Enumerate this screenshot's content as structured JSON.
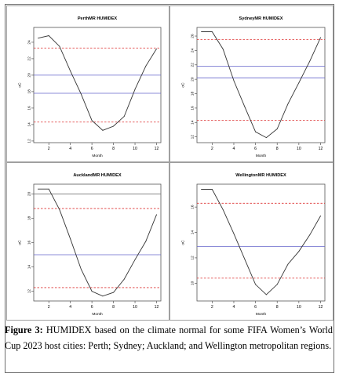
{
  "caption": {
    "label": "Figure 3:",
    "text": " HUMIDEX based on the climate normal for some FIFA Women’s World Cup 2023 host cities: Perth; Sydney; Auckland; and Wellington metropolitan regions."
  },
  "colors": {
    "curve": "#333333",
    "threshold_red": "#dd3333",
    "threshold_blue": "#6666cc",
    "threshold_gray": "#777777"
  },
  "chart_data": [
    {
      "type": "line",
      "title": "PerthMR HUMIDEX",
      "xlabel": "Month",
      "ylabel": "oC",
      "xlim": [
        0.6,
        12.4
      ],
      "ylim": [
        11.8,
        25.8
      ],
      "x_ticks": [
        2,
        4,
        6,
        8,
        10,
        12
      ],
      "y_ticks": [
        12,
        14,
        16,
        18,
        20,
        22,
        24
      ],
      "x": [
        1,
        2,
        3,
        4,
        5,
        6,
        7,
        8,
        9,
        10,
        11,
        12
      ],
      "y": [
        24.5,
        24.8,
        23.5,
        20.5,
        17.7,
        14.5,
        13.3,
        13.8,
        15.0,
        18.3,
        21.1,
        23.2
      ],
      "hlines": [
        {
          "y": 23.3,
          "color": "red",
          "style": "dashed"
        },
        {
          "y": 20.0,
          "color": "blue",
          "style": "solid"
        },
        {
          "y": 17.8,
          "color": "blue",
          "style": "solid"
        },
        {
          "y": 14.3,
          "color": "red",
          "style": "dashed"
        }
      ]
    },
    {
      "type": "line",
      "title": "SydneyMR HUMIDEX",
      "xlabel": "Month",
      "ylabel": "oC",
      "xlim": [
        0.6,
        12.4
      ],
      "ylim": [
        11.2,
        27.2
      ],
      "x_ticks": [
        2,
        4,
        6,
        8,
        10,
        12
      ],
      "y_ticks": [
        12,
        14,
        16,
        18,
        20,
        22,
        24,
        26
      ],
      "x": [
        1,
        2,
        3,
        4,
        5,
        6,
        7,
        8,
        9,
        10,
        11,
        12
      ],
      "y": [
        26.6,
        26.6,
        24.2,
        19.8,
        16.2,
        12.7,
        11.9,
        13.1,
        16.6,
        19.5,
        22.5,
        25.8
      ],
      "hlines": [
        {
          "y": 25.5,
          "color": "red",
          "style": "dashed"
        },
        {
          "y": 21.8,
          "color": "blue",
          "style": "solid"
        },
        {
          "y": 20.2,
          "color": "blue",
          "style": "solid"
        },
        {
          "y": 14.3,
          "color": "red",
          "style": "dashed"
        }
      ]
    },
    {
      "type": "line",
      "title": "AucklandMR HUMIDEX",
      "xlabel": "Month",
      "ylabel": "oC",
      "xlim": [
        0.6,
        12.4
      ],
      "ylim": [
        11.2,
        20.8
      ],
      "x_ticks": [
        2,
        4,
        6,
        8,
        10,
        12
      ],
      "y_ticks": [
        12,
        14,
        16,
        18,
        20
      ],
      "x": [
        1,
        2,
        3,
        4,
        5,
        6,
        7,
        8,
        9,
        10,
        11,
        12
      ],
      "y": [
        20.4,
        20.4,
        18.7,
        16.3,
        13.8,
        12.0,
        11.6,
        11.9,
        13.0,
        14.6,
        16.1,
        18.3
      ],
      "hlines": [
        {
          "y": 20.0,
          "color": "gray",
          "style": "solid"
        },
        {
          "y": 18.8,
          "color": "red",
          "style": "dashed"
        },
        {
          "y": 15.0,
          "color": "blue",
          "style": "solid"
        },
        {
          "y": 12.3,
          "color": "red",
          "style": "dashed"
        }
      ]
    },
    {
      "type": "line",
      "title": "WellingtonMR HUMIDEX",
      "xlabel": "Month",
      "ylabel": "oC",
      "xlim": [
        0.6,
        12.4
      ],
      "ylim": [
        8.6,
        17.8
      ],
      "x_ticks": [
        2,
        4,
        6,
        8,
        10,
        12
      ],
      "y_ticks": [
        10,
        12,
        14,
        16
      ],
      "x": [
        1,
        2,
        3,
        4,
        5,
        6,
        7,
        8,
        9,
        10,
        11,
        12
      ],
      "y": [
        17.4,
        17.4,
        15.8,
        13.9,
        11.9,
        9.9,
        9.1,
        9.9,
        11.5,
        12.5,
        13.8,
        15.3
      ],
      "hlines": [
        {
          "y": 16.3,
          "color": "red",
          "style": "dashed"
        },
        {
          "y": 12.9,
          "color": "blue",
          "style": "solid"
        },
        {
          "y": 10.4,
          "color": "red",
          "style": "dashed"
        }
      ]
    }
  ]
}
